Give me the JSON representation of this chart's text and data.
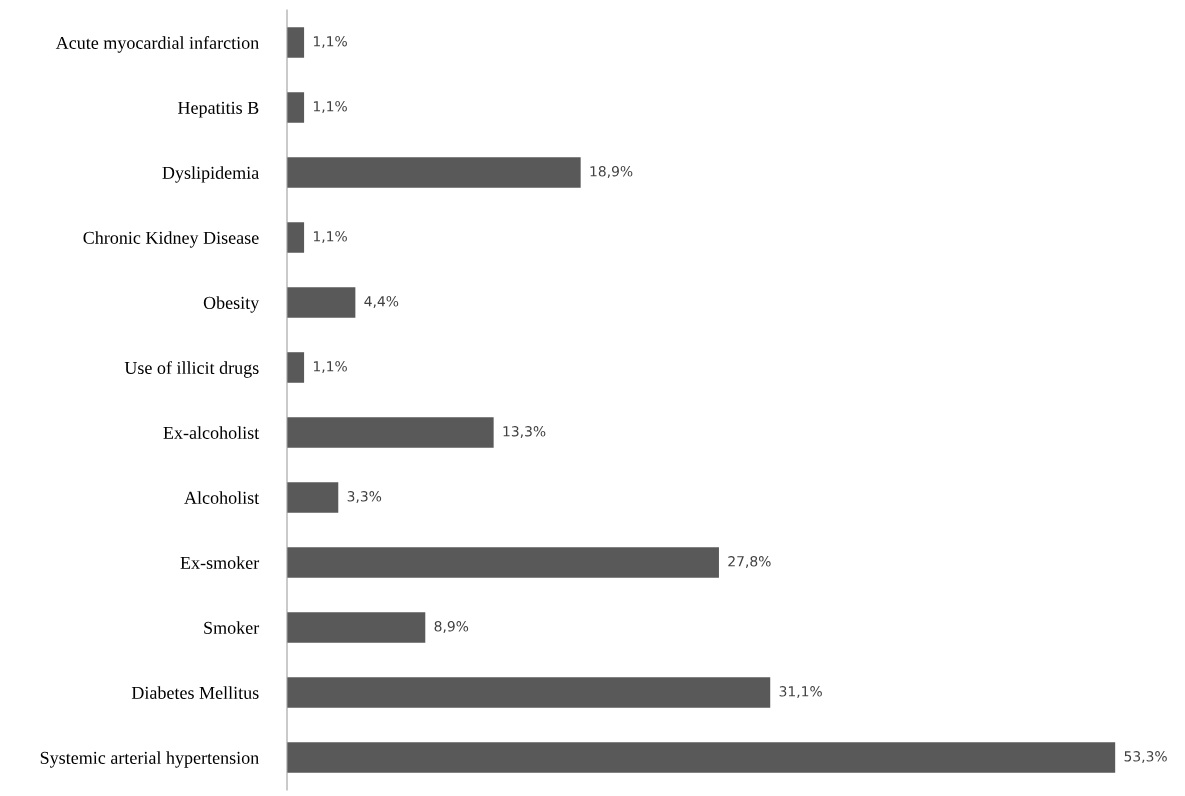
{
  "chart_data": {
    "type": "bar",
    "orientation": "horizontal",
    "categories": [
      "Acute myocardial infarction",
      "Hepatitis B",
      "Dyslipidemia",
      "Chronic Kidney Disease",
      "Obesity",
      "Use of illicit drugs",
      "Ex-alcoholist",
      "Alcoholist",
      "Ex-smoker",
      "Smoker",
      "Diabetes Mellitus",
      "Systemic arterial hypertension"
    ],
    "values": [
      1.1,
      1.1,
      18.9,
      1.1,
      4.4,
      1.1,
      13.3,
      3.3,
      27.8,
      8.9,
      31.1,
      53.3
    ],
    "value_labels": [
      "1,1%",
      "1,1%",
      "18,9%",
      "1,1%",
      "4,4%",
      "1,1%",
      "13,3%",
      "3,3%",
      "27,8%",
      "8,9%",
      "31,1%",
      "53,3%"
    ],
    "color": "#595959",
    "grid": false,
    "legend": false
  }
}
